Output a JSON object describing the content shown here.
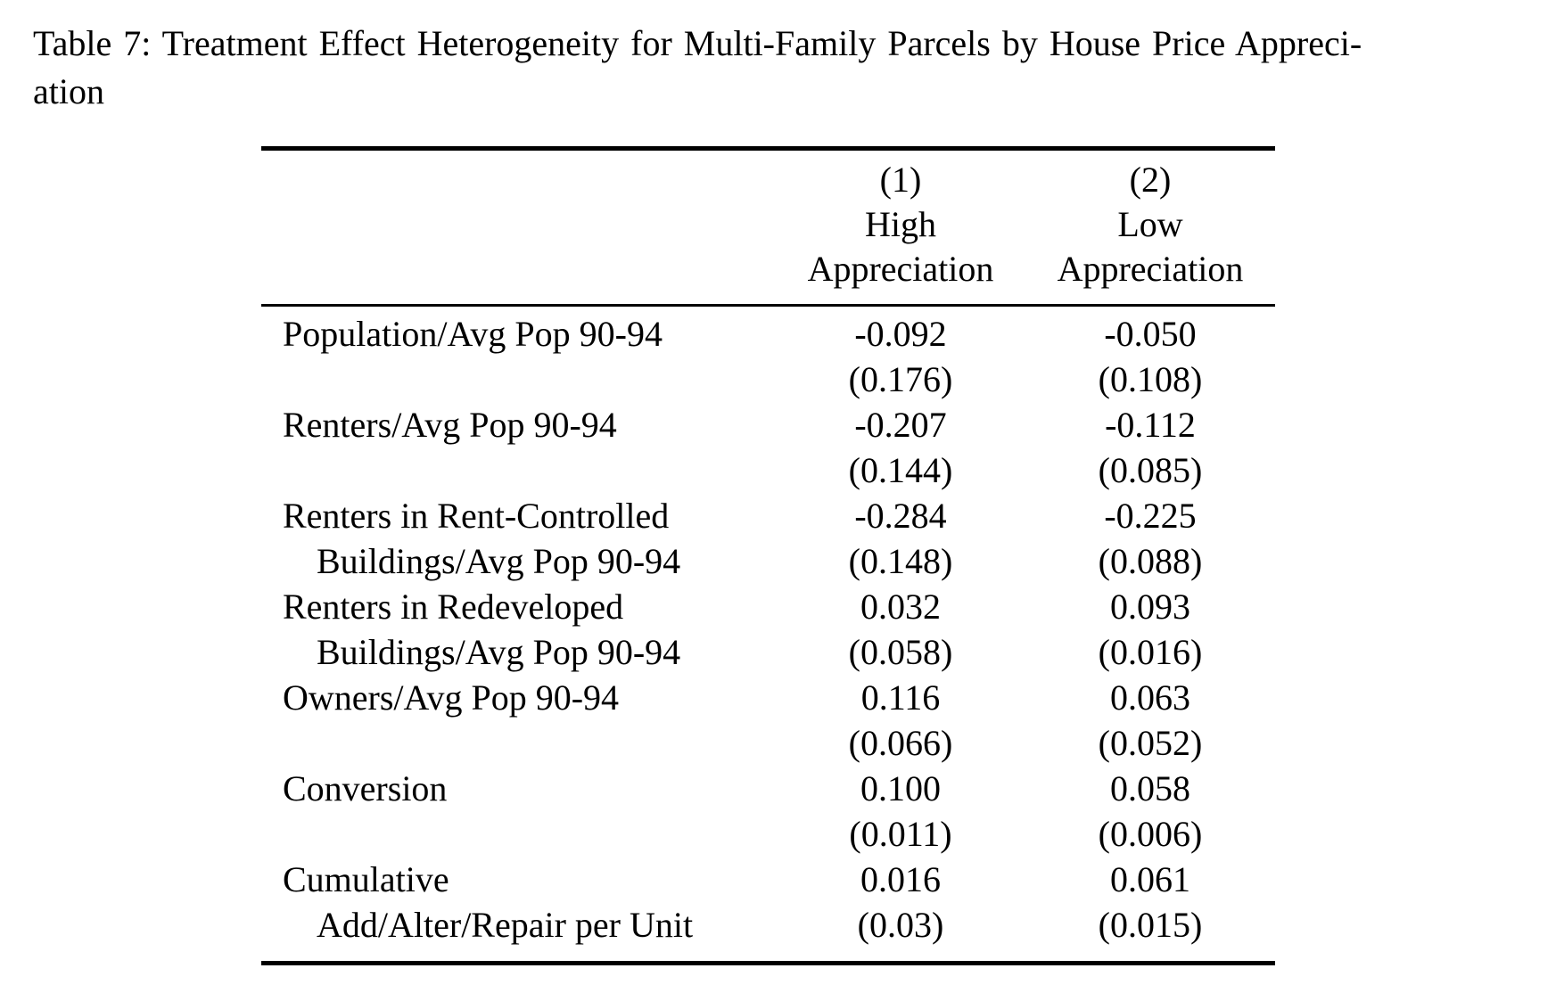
{
  "caption": {
    "lines": [
      "Table 7: Treatment Effect Heterogeneity for Multi-Family Parcels by House Price Appreci-",
      "ation"
    ],
    "full_title": "Table 7: Treatment Effect Heterogeneity for Multi-Family Parcels by House Price Appreciation"
  },
  "table": {
    "columns": [
      {
        "number": "(1)",
        "line1": "High",
        "line2": "Appreciation"
      },
      {
        "number": "(2)",
        "line1": "Low",
        "line2": "Appreciation"
      }
    ],
    "rows": [
      {
        "label": "Population/Avg Pop 90-94",
        "indent": false,
        "col1": "-0.092",
        "col2": "-0.050"
      },
      {
        "label": "",
        "indent": false,
        "col1": "(0.176)",
        "col2": "(0.108)"
      },
      {
        "label": "Renters/Avg Pop 90-94",
        "indent": false,
        "col1": "-0.207",
        "col2": "-0.112"
      },
      {
        "label": "",
        "indent": false,
        "col1": "(0.144)",
        "col2": "(0.085)"
      },
      {
        "label": "Renters in Rent-Controlled",
        "indent": false,
        "col1": "-0.284",
        "col2": "-0.225"
      },
      {
        "label": "Buildings/Avg Pop 90-94",
        "indent": true,
        "col1": "(0.148)",
        "col2": "(0.088)"
      },
      {
        "label": "Renters in Redeveloped",
        "indent": false,
        "col1": "0.032",
        "col2": "0.093"
      },
      {
        "label": "Buildings/Avg Pop 90-94",
        "indent": true,
        "col1": "(0.058)",
        "col2": "(0.016)"
      },
      {
        "label": "Owners/Avg Pop 90-94",
        "indent": false,
        "col1": "0.116",
        "col2": "0.063"
      },
      {
        "label": "",
        "indent": false,
        "col1": "(0.066)",
        "col2": "(0.052)"
      },
      {
        "label": "Conversion",
        "indent": false,
        "col1": "0.100",
        "col2": "0.058"
      },
      {
        "label": "",
        "indent": false,
        "col1": "(0.011)",
        "col2": "(0.006)"
      },
      {
        "label": "Cumulative",
        "indent": false,
        "col1": "0.016",
        "col2": "0.061"
      },
      {
        "label": "Add/Alter/Repair per Unit",
        "indent": true,
        "col1": "(0.03)",
        "col2": "(0.015)"
      }
    ],
    "colors": {
      "text": "#000000",
      "background": "#ffffff",
      "rule": "#000000"
    }
  }
}
